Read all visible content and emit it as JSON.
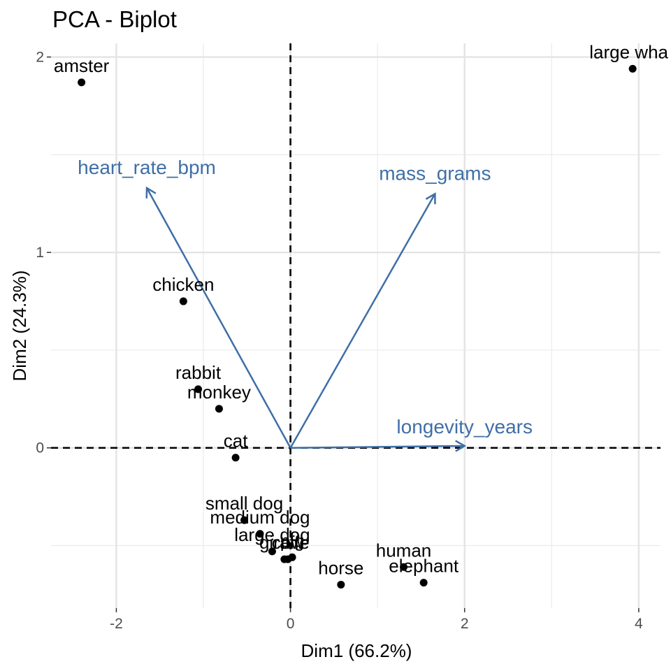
{
  "chart_data": {
    "type": "scatter",
    "title": "PCA - Biplot",
    "xlabel": "Dim1 (66.2%)",
    "ylabel": "Dim2 (24.3%)",
    "xlim": [
      -2.75,
      4.25
    ],
    "ylim": [
      -0.82,
      2.07
    ],
    "x_ticks": [
      -2,
      0,
      2,
      4
    ],
    "x_tick_labels": [
      "-2",
      "0",
      "2",
      "4"
    ],
    "y_ticks": [
      0,
      1,
      2
    ],
    "y_tick_labels": [
      "0",
      "1",
      "2"
    ],
    "x_minor": [
      -1,
      1,
      3
    ],
    "y_minor": [
      0.5,
      1.5,
      -0.5
    ],
    "grid": true,
    "reference_lines": {
      "x": 0,
      "y": 0,
      "style": "dashed"
    },
    "point_color": "#000000",
    "arrow_color": "#3f6fa6",
    "points": [
      {
        "label": "amster",
        "x": -2.4,
        "y": 1.87
      },
      {
        "label": "large wha",
        "x": 3.93,
        "y": 1.94
      },
      {
        "label": "chicken",
        "x": -1.23,
        "y": 0.75
      },
      {
        "label": "rabbit",
        "x": -1.06,
        "y": 0.3
      },
      {
        "label": "monkey",
        "x": -0.82,
        "y": 0.2
      },
      {
        "label": "cat",
        "x": -0.63,
        "y": -0.05
      },
      {
        "label": "small dog",
        "x": -0.53,
        "y": -0.37
      },
      {
        "label": "medium dog",
        "x": -0.35,
        "y": -0.44
      },
      {
        "label": "large dog",
        "x": -0.21,
        "y": -0.53
      },
      {
        "label": "giraffe",
        "x": -0.07,
        "y": -0.57
      },
      {
        "label": "cow",
        "x": -0.03,
        "y": -0.57
      },
      {
        "label": "pig",
        "x": 0.02,
        "y": -0.56
      },
      {
        "label": "horse",
        "x": 0.58,
        "y": -0.7
      },
      {
        "label": "human",
        "x": 1.3,
        "y": -0.61
      },
      {
        "label": "elephant",
        "x": 1.53,
        "y": -0.69
      }
    ],
    "variables": [
      {
        "label": "heart_rate_bpm",
        "x": -1.65,
        "y": 1.33
      },
      {
        "label": "mass_grams",
        "x": 1.66,
        "y": 1.3
      },
      {
        "label": "longevity_years",
        "x": 2.0,
        "y": 0.01
      }
    ]
  }
}
